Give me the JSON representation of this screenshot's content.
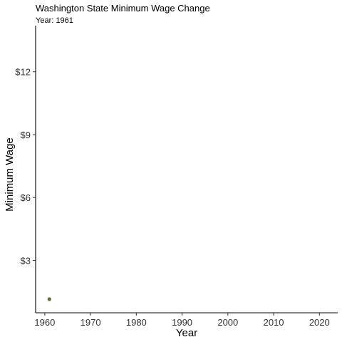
{
  "chart_data": {
    "type": "scatter",
    "title": "Washington State Minimum Wage Change",
    "subtitle": "Year: 1961",
    "xlabel": "Year",
    "ylabel": "Minimum Wage",
    "xlim": [
      1958,
      2024
    ],
    "ylim": [
      0.5,
      14.2
    ],
    "x_ticks": [
      1960,
      1970,
      1980,
      1990,
      2000,
      2010,
      2020
    ],
    "x_tick_labels": [
      "1960",
      "1970",
      "1980",
      "1990",
      "2000",
      "2010",
      "2020"
    ],
    "y_ticks": [
      3,
      6,
      9,
      12
    ],
    "y_tick_labels": [
      "$3",
      "$6",
      "$9",
      "$12"
    ],
    "grid": false,
    "legend": "none",
    "point_color": "#6b6b3a",
    "points": [
      {
        "x": 1961,
        "y": 1.15
      }
    ]
  }
}
